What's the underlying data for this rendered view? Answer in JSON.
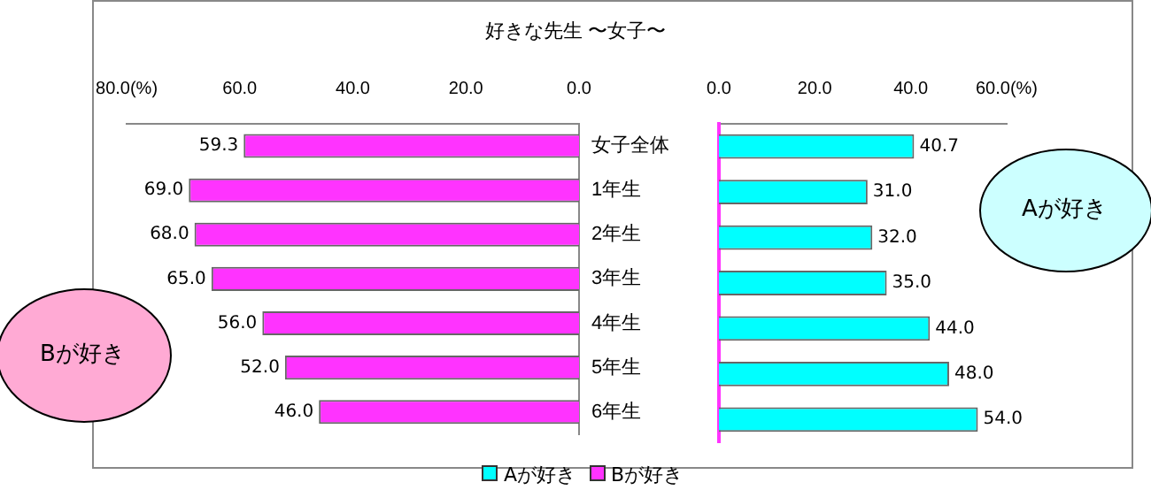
{
  "chart_data": [
    {
      "type": "bar",
      "title": "好きな先生 〜女子〜",
      "orientation": "horizontal",
      "categories": [
        "女子全体",
        "1年生",
        "2年生",
        "3年生",
        "4年生",
        "5年生",
        "6年生"
      ],
      "series": [
        {
          "name": "Bが好き",
          "color": "#ff33ff",
          "values": [
            59.3,
            69.0,
            68.0,
            65.0,
            56.0,
            52.0,
            46.0
          ],
          "value_labels": [
            "59.3",
            "69.0",
            "68.0",
            "65.0",
            "56.0",
            "52.0",
            "46.0"
          ]
        }
      ],
      "xlim": [
        80,
        0
      ],
      "xticks": [
        {
          "value": 80,
          "label": "80.0(%)"
        },
        {
          "value": 60,
          "label": "60.0"
        },
        {
          "value": 40,
          "label": "40.0"
        },
        {
          "value": 20,
          "label": "20.0"
        },
        {
          "value": 0,
          "label": "0.0"
        }
      ],
      "grid": false,
      "legend": "bottom",
      "annotations": [
        "Bが好き"
      ]
    },
    {
      "type": "bar",
      "orientation": "horizontal",
      "series": [
        {
          "name": "Aが好き",
          "color": "#00ffff",
          "values": [
            40.7,
            31.0,
            32.0,
            35.0,
            44.0,
            48.0,
            54.0
          ],
          "value_labels": [
            "40.7",
            "31.0",
            "32.0",
            "35.0",
            "44.0",
            "48.0",
            "54.0"
          ]
        }
      ],
      "xlim": [
        0,
        60
      ],
      "xticks": [
        {
          "value": 0,
          "label": "0.0"
        },
        {
          "value": 20,
          "label": "20.0"
        },
        {
          "value": 40,
          "label": "40.0"
        },
        {
          "value": 60,
          "label": "60.0(%)"
        }
      ],
      "grid": false,
      "legend": "bottom",
      "tick_labels": "x",
      "annotations": [
        "Aが好き"
      ]
    }
  ]
}
